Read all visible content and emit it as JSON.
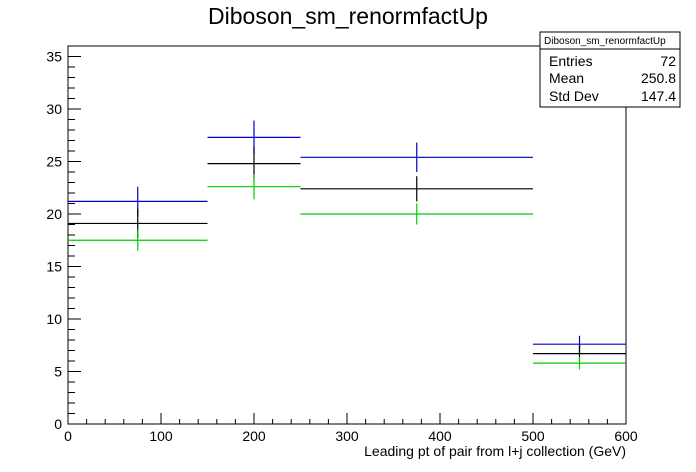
{
  "chart_data": {
    "type": "histogram",
    "title": "Diboson_sm_renormfactUp",
    "xlabel": "Leading pt of pair from l+j collection (GeV)",
    "ylabel": "",
    "xlim": [
      0,
      600
    ],
    "ylim": [
      0,
      36
    ],
    "xticks": [
      0,
      100,
      200,
      300,
      400,
      500,
      600
    ],
    "yticks": [
      0,
      5,
      10,
      15,
      20,
      25,
      30,
      35
    ],
    "bin_edges": [
      0,
      150,
      250,
      500,
      600
    ],
    "series": [
      {
        "color": "#0000cc",
        "values": [
          21.2,
          27.3,
          25.4,
          7.6
        ],
        "errors": [
          1.4,
          1.6,
          1.4,
          0.8
        ]
      },
      {
        "color": "#000000",
        "values": [
          19.1,
          24.8,
          22.4,
          6.7
        ],
        "errors": [
          1.4,
          1.6,
          1.2,
          0.8
        ]
      },
      {
        "color": "#00cc00",
        "values": [
          17.5,
          22.6,
          20.0,
          5.8
        ],
        "errors": [
          1.0,
          1.2,
          1.0,
          0.6
        ]
      }
    ],
    "stats_box": {
      "title": "Diboson_sm_renormfactUp",
      "rows": [
        {
          "label": "Entries",
          "value": "72"
        },
        {
          "label": "Mean",
          "value": "250.8"
        },
        {
          "label": "Std Dev",
          "value": "147.4"
        }
      ]
    }
  }
}
